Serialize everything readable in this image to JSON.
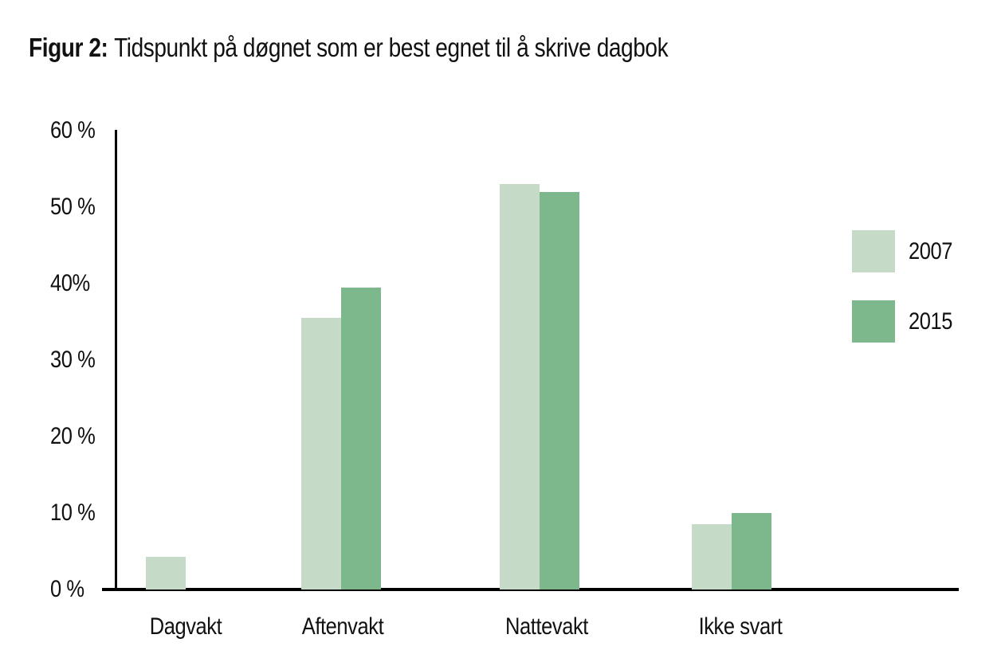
{
  "title": {
    "prefix": "Figur 2:",
    "text": "Tidspunkt på døgnet som er best egnet til å skrive dagbok"
  },
  "chart_data": {
    "type": "bar",
    "title": "Figur 2: Tidspunkt på døgnet som er best egnet til å skrive dagbok",
    "categories": [
      "Dagvakt",
      "Aftenvakt",
      "Nattevakt",
      "Ikke svart"
    ],
    "series": [
      {
        "name": "2007",
        "color": "#c5dbc8",
        "values": [
          4.3,
          35.5,
          53,
          8.5
        ]
      },
      {
        "name": "2015",
        "color": "#7db88d",
        "values": [
          null,
          39.5,
          52,
          10
        ]
      }
    ],
    "xlabel": "",
    "ylabel": "",
    "ylim": [
      0,
      60
    ],
    "yticks": [
      {
        "label": "0 %",
        "value": 0
      },
      {
        "label": "10 %",
        "value": 10
      },
      {
        "label": "20 %",
        "value": 20
      },
      {
        "label": "30 %",
        "value": 30
      },
      {
        "label": "40%",
        "value": 40
      },
      {
        "label": "50 %",
        "value": 50
      },
      {
        "label": "60 %",
        "value": 60
      }
    ],
    "grid": false,
    "legend_position": "right",
    "axis_color": "#000000",
    "background_color": "#ffffff"
  }
}
